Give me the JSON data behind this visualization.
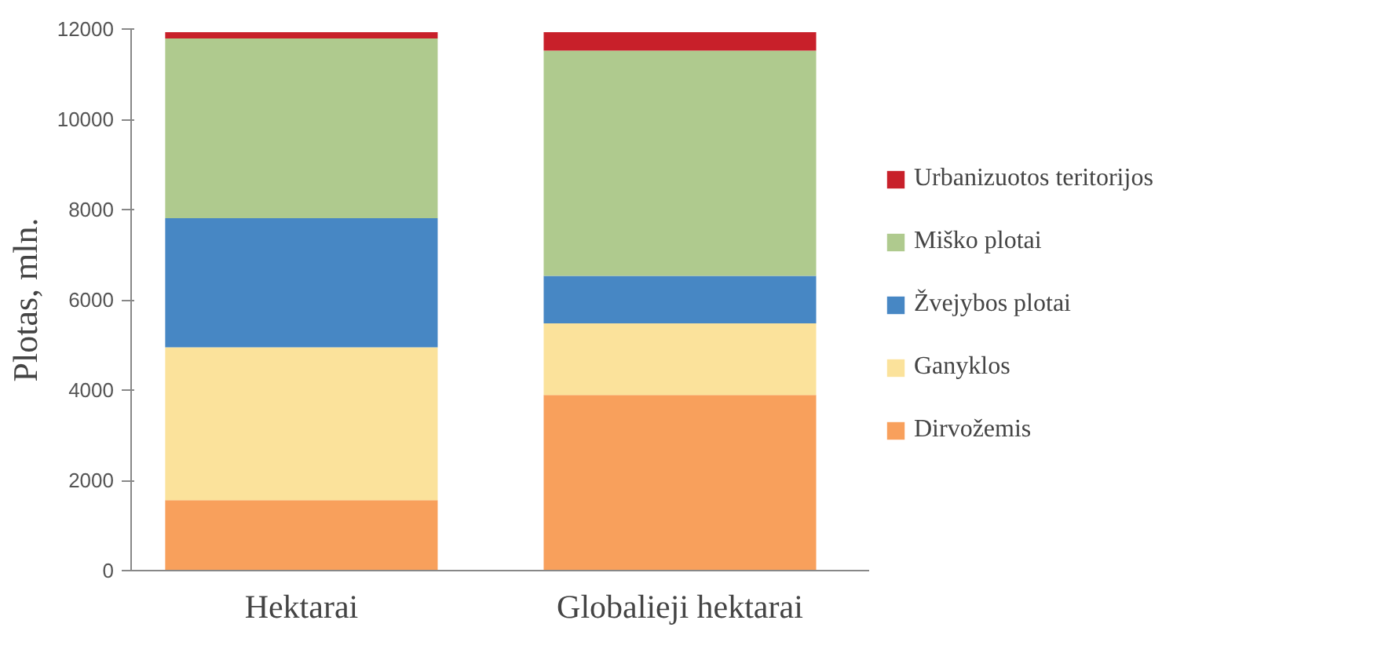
{
  "chart_data": {
    "type": "bar",
    "stacked": true,
    "ylabel": "Plotas, mln.",
    "categories": [
      "Hektarai",
      "Globalieji hektarai"
    ],
    "series": [
      {
        "name": "Dirvožemis",
        "color": "#f8a05c",
        "values": [
          1560,
          3890
        ]
      },
      {
        "name": "Ganyklos",
        "color": "#fbe29b",
        "values": [
          3390,
          1590
        ]
      },
      {
        "name": "Žvejybos plotai",
        "color": "#4787c4",
        "values": [
          2860,
          1050
        ]
      },
      {
        "name": "Miško plotai",
        "color": "#afca8e",
        "values": [
          3980,
          4990
        ]
      },
      {
        "name": "Urbanizuotos teritorijos",
        "color": "#c8202a",
        "values": [
          140,
          410
        ]
      }
    ],
    "ylim": [
      0,
      12000
    ],
    "yticks": [
      0,
      2000,
      4000,
      6000,
      8000,
      10000,
      12000
    ],
    "grid": false,
    "legend": "right"
  }
}
